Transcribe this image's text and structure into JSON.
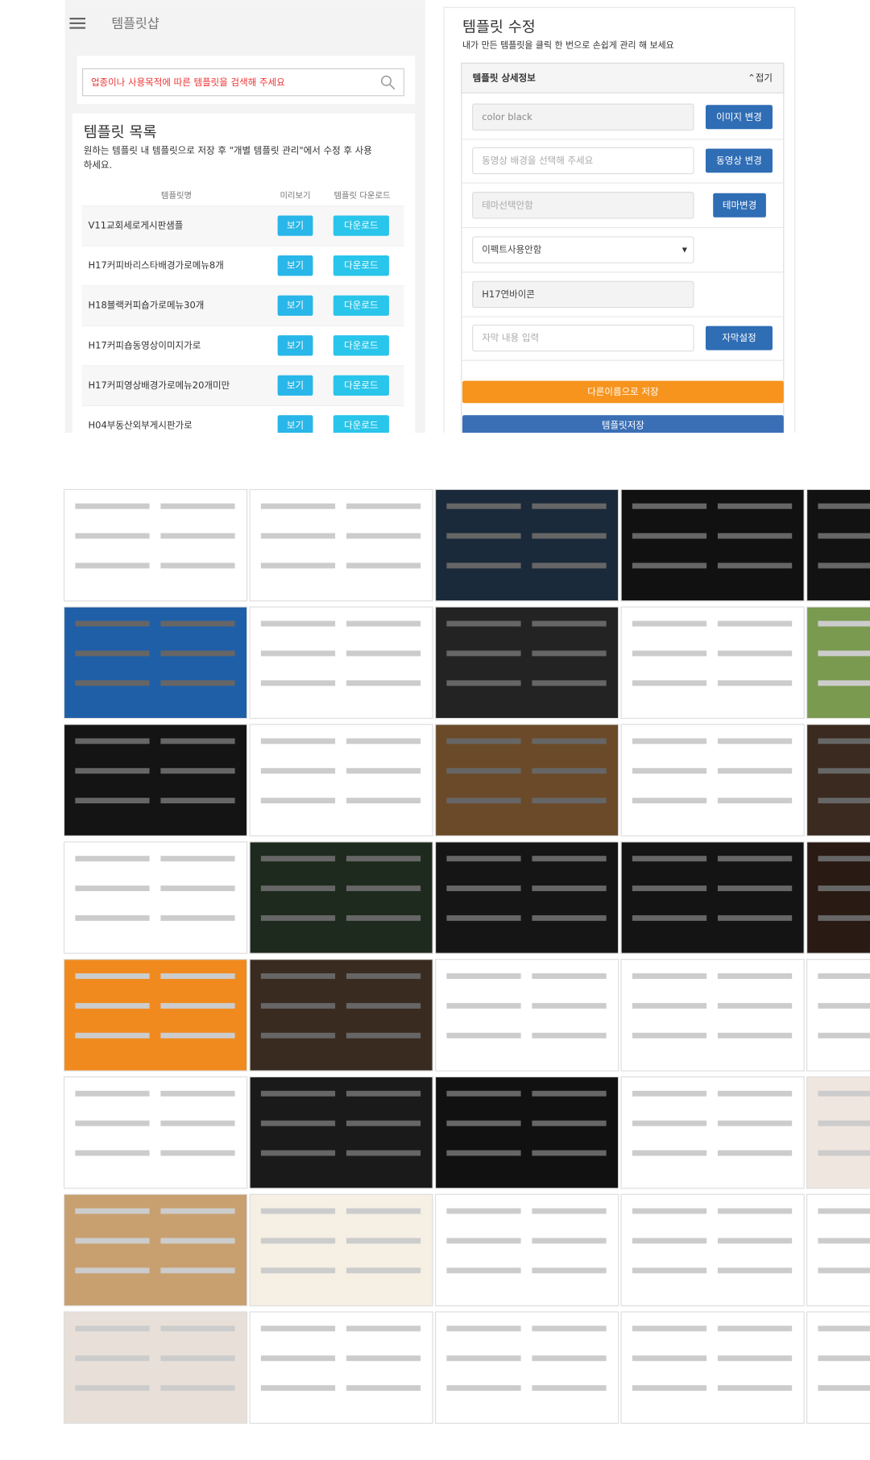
{
  "header": {
    "title": "템플릿샵"
  },
  "search": {
    "placeholder": "업종이나 사용목적에 따른 템플릿을 검색해 주세요"
  },
  "list": {
    "title": "템플릿 목록",
    "description": [
      "원하는 템플릿 내 템플릿으로 저장 후 \"개별 템플릿 관리\"에서 수정 후 사용",
      "하세요."
    ],
    "columns": [
      "템플릿명",
      "미리보기",
      "템플릿 다운로드"
    ],
    "rows": [
      [
        "V11교회세로게시판샘플",
        "보기",
        "다운로드"
      ],
      [
        "H17커피바리스타배경가로메뉴8개",
        "보기",
        "다운로드"
      ],
      [
        "H18블랙커피숍가로메뉴30개",
        "보기",
        "다운로드"
      ],
      [
        "H17커피숍동영상이미지가로",
        "보기",
        "다운로드"
      ],
      [
        "H17커피영상배경가로메뉴20개미만",
        "보기",
        "다운로드"
      ],
      [
        "H04부동산외부게시판가로",
        "보기",
        "다운로드"
      ]
    ]
  },
  "editor": {
    "title": "템플릿 수정",
    "subtitle": "내가 만든 템플릿을 클릭 한 번으로 손쉽게 관리 해 보세요",
    "section": "템플릿 상세정보",
    "collapse": "⌃접기",
    "fields": [
      {
        "input": "color black",
        "button": "이미지 변경"
      },
      {
        "input": "동영상 배경을 선택해 주세요",
        "button": "동영상 변경"
      },
      {
        "input": "테마선택안함",
        "button": "테마변경"
      },
      {
        "input": "이펙트사용안함"
      },
      {
        "input": "H17연바이콘"
      },
      {
        "input": "자막 내용 입력",
        "button": "자막설정"
      }
    ],
    "save_as": "다른이름으로 저장",
    "save": "템플릿저장"
  },
  "thumbnails": [
    "#ffffff",
    "#ffffff",
    "#1b2a3a",
    "#111111",
    "#121212",
    "#1f5fa8",
    "#ffffff",
    "#232323",
    "#ffffff",
    "#7a9a50",
    "#141414",
    "#ffffff",
    "#6b4a2a",
    "#ffffff",
    "#3a2a1f",
    "#ffffff",
    "#1e2a1e",
    "#151515",
    "#141414",
    "#2a1a14",
    "#f08a1e",
    "#3a2b20",
    "#ffffff",
    "#ffffff",
    "#ffffff",
    "#ffffff",
    "#1a1a1a",
    "#111111",
    "#ffffff",
    "#f0e6e0",
    "#c8a070",
    "#f5efe4",
    "#ffffff",
    "#ffffff",
    "#ffffff",
    "#e8e0d8",
    "#ffffff",
    "#ffffff",
    "#ffffff",
    "#ffffff"
  ]
}
